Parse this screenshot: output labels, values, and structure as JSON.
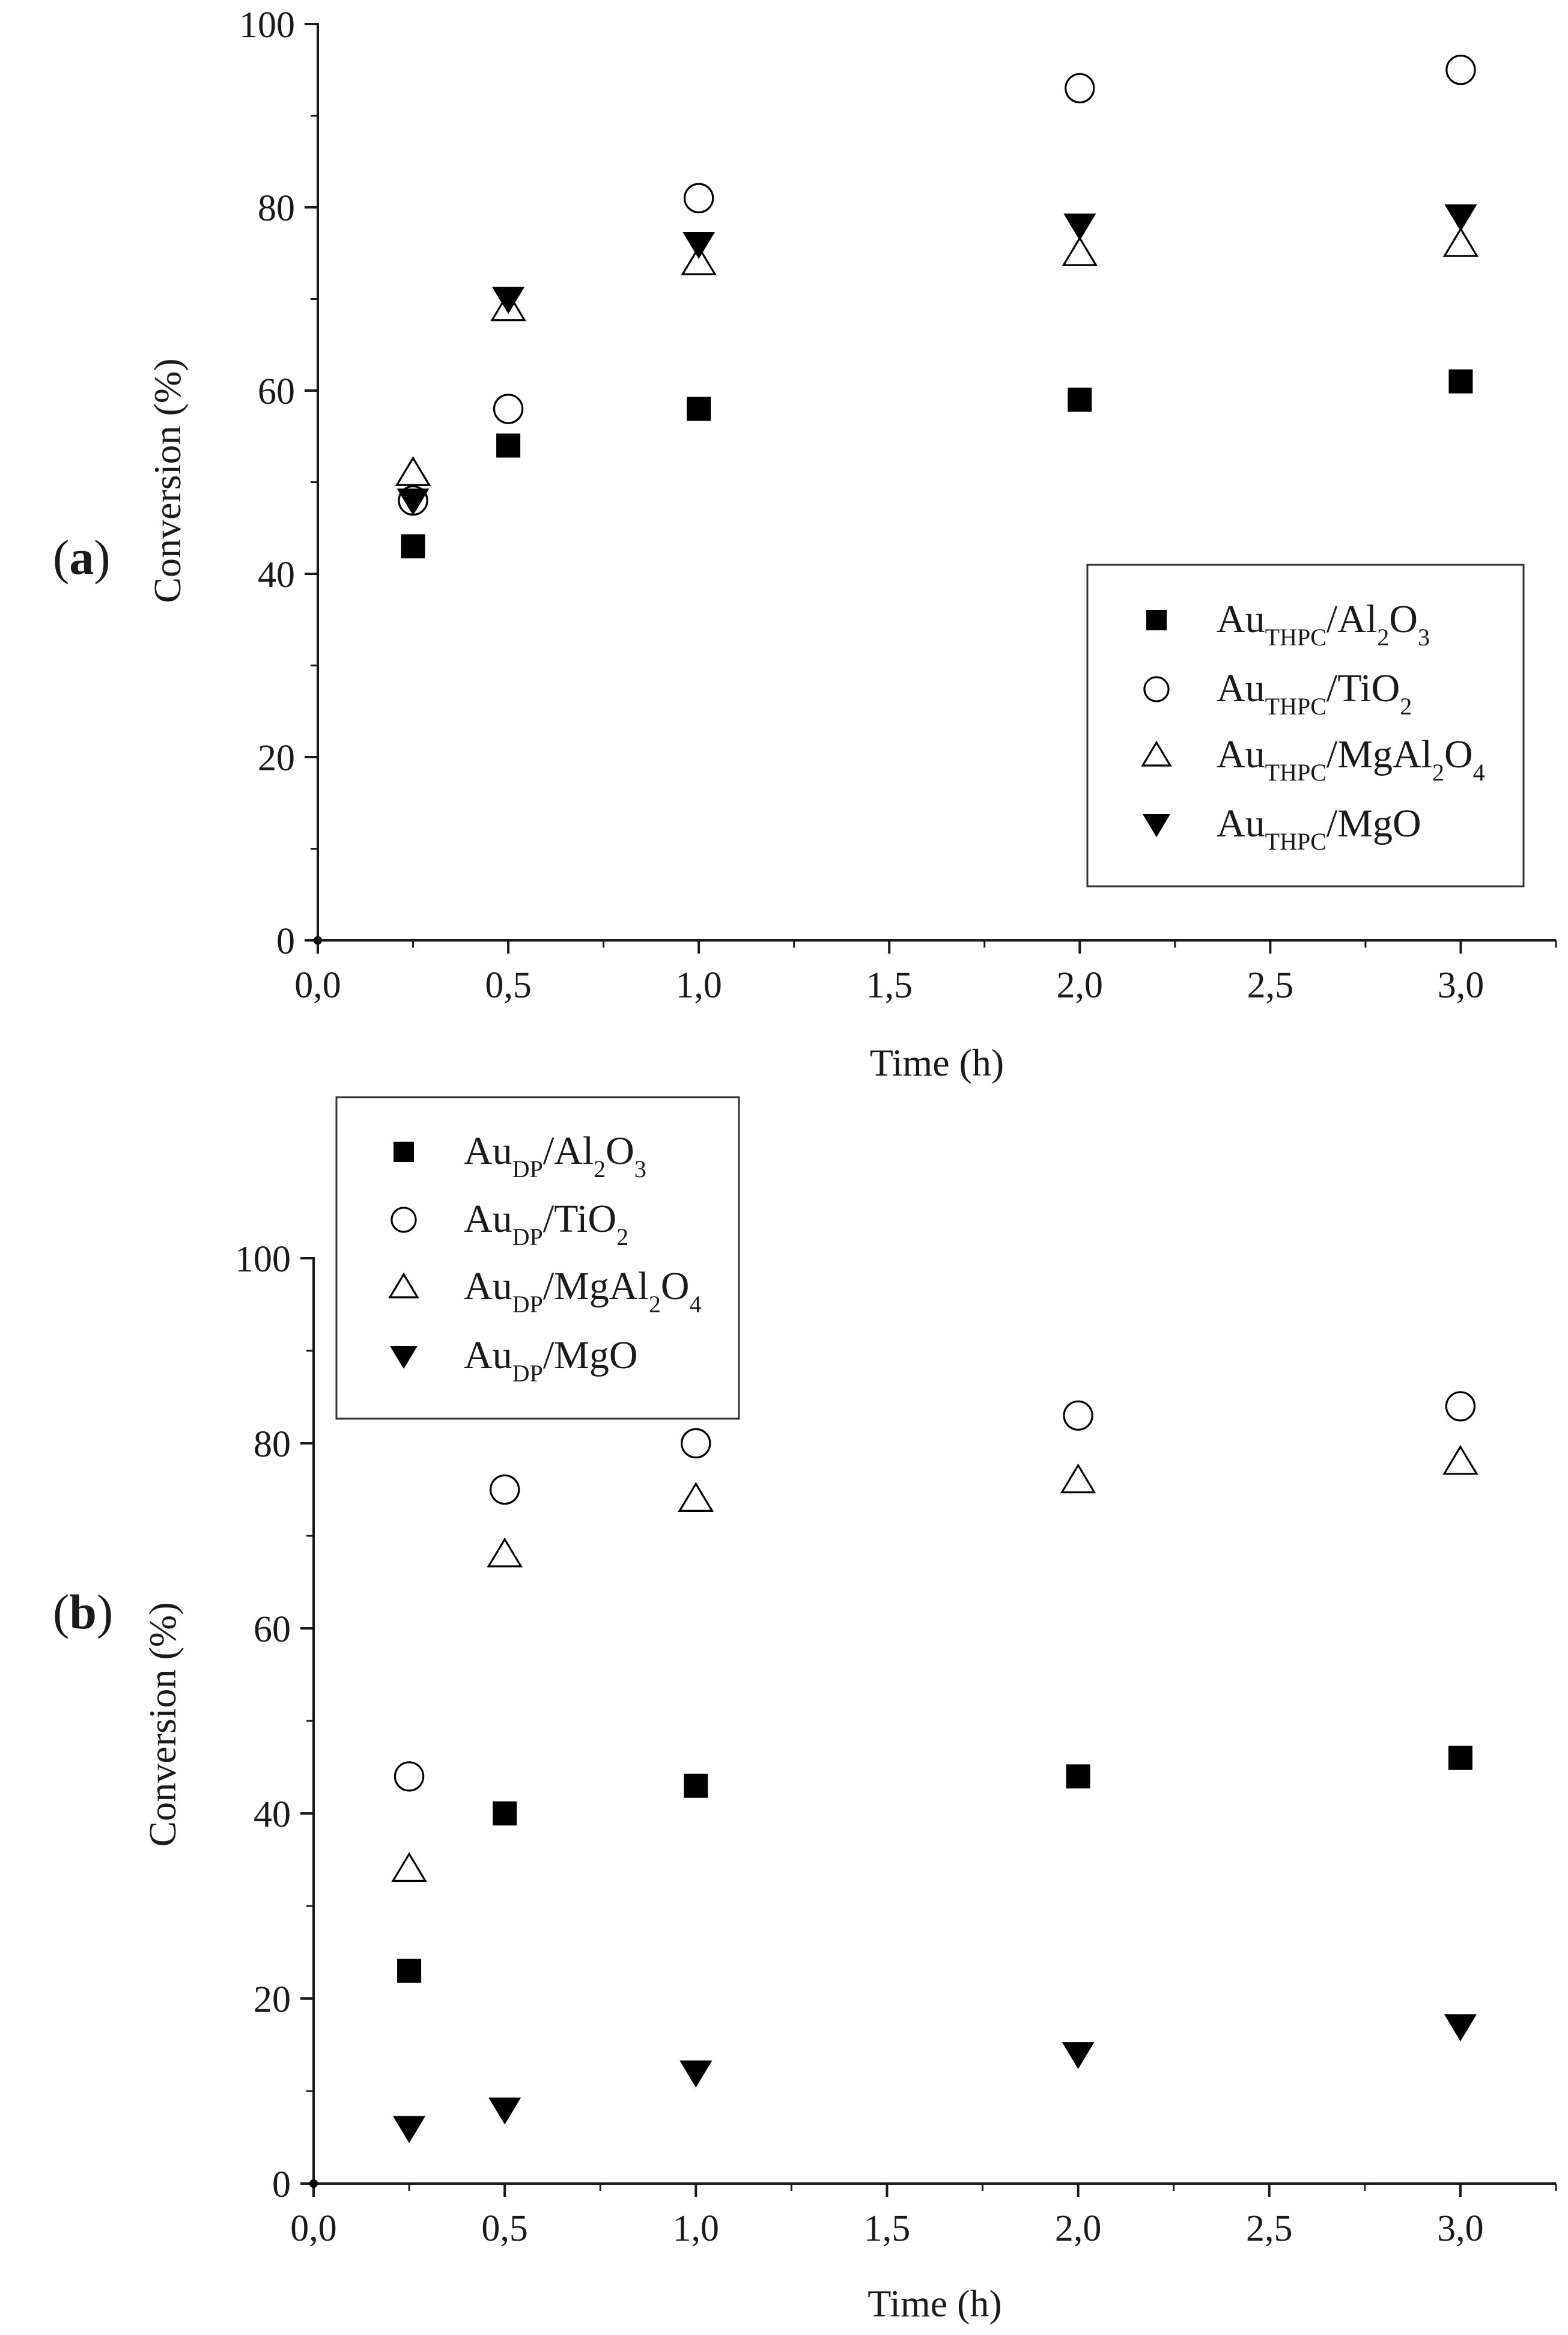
{
  "chart_data": [
    {
      "type": "scatter",
      "panel_label": "(a)",
      "xlabel": "Time (h)",
      "ylabel": "Conversion (%)",
      "xlim": [
        0,
        3.25
      ],
      "ylim": [
        0,
        100
      ],
      "x_ticks": [
        0,
        0.5,
        1.0,
        1.5,
        2.0,
        2.5,
        3.0
      ],
      "x_tick_labels": [
        "0,0",
        "0,5",
        "1,0",
        "1,5",
        "2,0",
        "2,5",
        "3,0"
      ],
      "y_ticks": [
        0,
        20,
        40,
        60,
        80,
        100
      ],
      "y_tick_labels": [
        "0",
        "20",
        "40",
        "60",
        "80",
        "100"
      ],
      "grid": false,
      "legend_position": "center-right",
      "series": [
        {
          "name": [
            "Au",
            "THPC",
            "/Al",
            "2",
            "O",
            "3"
          ],
          "marker": "square-filled",
          "x": [
            0,
            0.25,
            0.5,
            1.0,
            2.0,
            3.0
          ],
          "y": [
            0,
            43,
            54,
            58,
            59,
            61
          ]
        },
        {
          "name": [
            "Au",
            "THPC",
            "/TiO",
            "2",
            "",
            ""
          ],
          "marker": "circle-open",
          "x": [
            0,
            0.25,
            0.5,
            1.0,
            2.0,
            3.0
          ],
          "y": [
            0,
            48,
            58,
            81,
            93,
            95
          ]
        },
        {
          "name": [
            "Au",
            "THPC",
            "/MgAl",
            "2",
            "O",
            "4"
          ],
          "marker": "triangle-up-open",
          "x": [
            0,
            0.25,
            0.5,
            1.0,
            2.0,
            3.0
          ],
          "y": [
            0,
            51,
            69,
            74,
            75,
            76
          ]
        },
        {
          "name": [
            "Au",
            "THPC",
            "/MgO",
            "",
            "",
            ""
          ],
          "marker": "triangle-down-filled",
          "x": [
            0,
            0.25,
            0.5,
            1.0,
            2.0,
            3.0
          ],
          "y": [
            0,
            48,
            70,
            76,
            78,
            79
          ]
        }
      ]
    },
    {
      "type": "scatter",
      "panel_label": "(b)",
      "xlabel": "Time (h)",
      "ylabel": "Conversion (%)",
      "xlim": [
        0,
        3.25
      ],
      "ylim": [
        0,
        100
      ],
      "x_ticks": [
        0,
        0.5,
        1.0,
        1.5,
        2.0,
        2.5,
        3.0
      ],
      "x_tick_labels": [
        "0,0",
        "0,5",
        "1,0",
        "1,5",
        "2,0",
        "2,5",
        "3,0"
      ],
      "y_ticks": [
        0,
        20,
        40,
        60,
        80,
        100
      ],
      "y_tick_labels": [
        "0",
        "20",
        "40",
        "60",
        "80",
        "100"
      ],
      "grid": false,
      "legend_position": "top-left",
      "series": [
        {
          "name": [
            "Au",
            "DP",
            "/Al",
            "2",
            "O",
            "3"
          ],
          "marker": "square-filled",
          "x": [
            0,
            0.25,
            0.5,
            1.0,
            2.0,
            3.0
          ],
          "y": [
            0,
            23,
            40,
            43,
            44,
            46
          ]
        },
        {
          "name": [
            "Au",
            "DP",
            "/TiO",
            "2",
            "",
            ""
          ],
          "marker": "circle-open",
          "x": [
            0,
            0.25,
            0.5,
            1.0,
            2.0,
            3.0
          ],
          "y": [
            0,
            44,
            75,
            80,
            83,
            84
          ]
        },
        {
          "name": [
            "Au",
            "DP",
            "/MgAl",
            "2",
            "O",
            "4"
          ],
          "marker": "triangle-up-open",
          "x": [
            0,
            0.25,
            0.5,
            1.0,
            2.0,
            3.0
          ],
          "y": [
            0,
            34,
            68,
            74,
            76,
            78
          ]
        },
        {
          "name": [
            "Au",
            "DP",
            "/MgO",
            "",
            "",
            ""
          ],
          "marker": "triangle-down-filled",
          "x": [
            0,
            0.25,
            0.5,
            1.0,
            2.0,
            3.0
          ],
          "y": [
            0,
            6,
            8,
            12,
            14,
            17
          ]
        }
      ]
    }
  ],
  "colors": {
    "marker": "#000000",
    "axis": "#1a1a1a",
    "legend_border": "#333333"
  }
}
